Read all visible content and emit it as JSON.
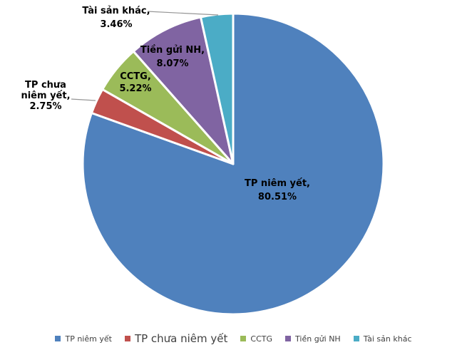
{
  "chart_data": {
    "type": "pie",
    "title": "",
    "categories": [
      "TP niêm yết",
      "TP chưa niêm yết",
      "CCTG",
      "Tiền gửi NH",
      "Tài sản khác"
    ],
    "values": [
      80.51,
      2.75,
      5.22,
      8.07,
      3.46
    ],
    "unit": "%",
    "colors": [
      "#4F81BD",
      "#C0504D",
      "#9BBB59",
      "#8064A2",
      "#4BACC6"
    ],
    "slice_border_color": "#FFFFFF",
    "leader_line_color": "#969696",
    "label_text_color": "#000000",
    "legend_text_color": "#404040",
    "start_angle_deg": 0,
    "direction": "clockwise",
    "legend_position": "bottom",
    "grid": "off",
    "slice_labels": [
      {
        "category": "TP niêm yết",
        "value_pct": 80.51,
        "lines": [
          "TP niêm yết,",
          "80.51%"
        ]
      },
      {
        "category": "TP chưa niêm yết",
        "value_pct": 2.75,
        "lines": [
          "TP chưa",
          "niêm yết,",
          "2.75%"
        ]
      },
      {
        "category": "CCTG",
        "value_pct": 5.22,
        "lines": [
          "CCTG,",
          "5.22%"
        ]
      },
      {
        "category": "Tiền gửi NH",
        "value_pct": 8.07,
        "lines": [
          "Tiền gửi NH,",
          "8.07%"
        ]
      },
      {
        "category": "Tài sản khác",
        "value_pct": 3.46,
        "lines": [
          "Tài sản khác,",
          "3.46%"
        ]
      }
    ]
  }
}
